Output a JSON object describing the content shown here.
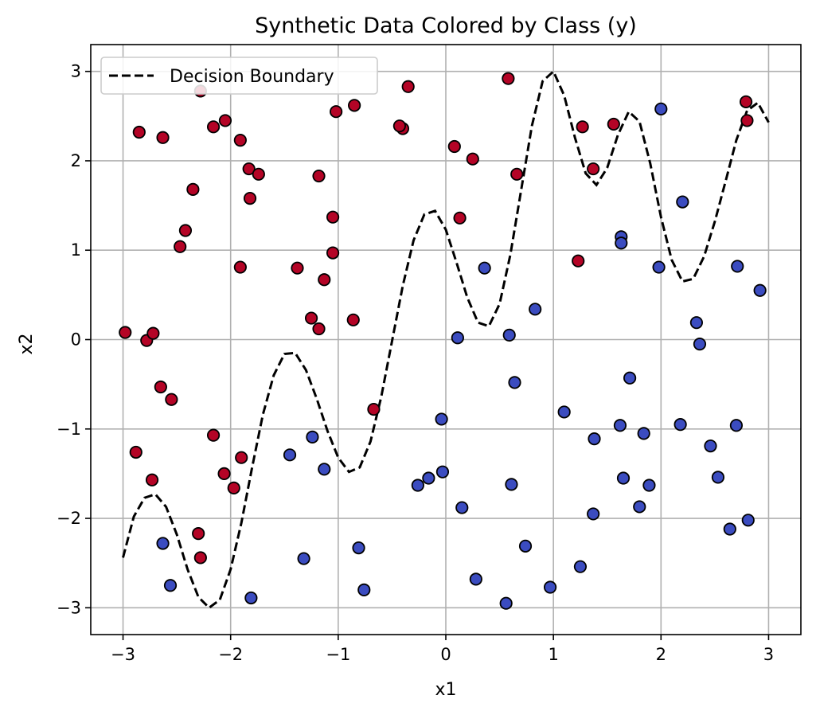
{
  "chart_data": {
    "type": "scatter",
    "title": "Synthetic Data Colored by Class (y)",
    "xlabel": "x1",
    "ylabel": "x2",
    "xlim": [
      -3.3,
      3.3
    ],
    "ylim": [
      -3.3,
      3.3
    ],
    "xticks": [
      -3,
      -2,
      -1,
      0,
      1,
      2,
      3
    ],
    "yticks": [
      -3,
      -2,
      -1,
      0,
      1,
      2,
      3
    ],
    "xtick_labels": [
      "−3",
      "−2",
      "−1",
      "0",
      "1",
      "2",
      "3"
    ],
    "ytick_labels": [
      "−3",
      "−2",
      "−1",
      "0",
      "1",
      "2",
      "3"
    ],
    "grid": true,
    "legend": {
      "placement": "top-left",
      "entries": [
        "Decision Boundary"
      ]
    },
    "colors": {
      "class_1": "#b40426",
      "class_0": "#3b4cc0",
      "boundary": "#000000",
      "edge": "#000000",
      "grid": "#b0b0b0"
    },
    "boundary_line": {
      "name": "Decision Boundary",
      "style": "dashed",
      "x": [
        -3.0,
        -2.9,
        -2.8,
        -2.7,
        -2.6,
        -2.5,
        -2.4,
        -2.3,
        -2.2,
        -2.1,
        -2.0,
        -1.9,
        -1.8,
        -1.7,
        -1.6,
        -1.5,
        -1.4,
        -1.3,
        -1.2,
        -1.1,
        -1.0,
        -0.9,
        -0.8,
        -0.7,
        -0.6,
        -0.5,
        -0.4,
        -0.3,
        -0.2,
        -0.1,
        0.0,
        0.1,
        0.2,
        0.3,
        0.4,
        0.5,
        0.6,
        0.7,
        0.8,
        0.9,
        1.0,
        1.1,
        1.2,
        1.3,
        1.4,
        1.5,
        1.6,
        1.7,
        1.8,
        1.9,
        2.0,
        2.1,
        2.2,
        2.3,
        2.4,
        2.5,
        2.6,
        2.7,
        2.8,
        2.9,
        3.0
      ],
      "y": [
        -2.44,
        -1.98,
        -1.77,
        -1.73,
        -1.87,
        -2.18,
        -2.57,
        -2.88,
        -3.0,
        -2.91,
        -2.57,
        -2.05,
        -1.43,
        -0.84,
        -0.4,
        -0.16,
        -0.15,
        -0.34,
        -0.66,
        -1.02,
        -1.32,
        -1.48,
        -1.43,
        -1.14,
        -0.64,
        -0.02,
        0.6,
        1.11,
        1.4,
        1.44,
        1.23,
        0.86,
        0.47,
        0.19,
        0.15,
        0.4,
        0.95,
        1.67,
        2.39,
        2.89,
        3.0,
        2.73,
        2.26,
        1.86,
        1.73,
        1.92,
        2.29,
        2.55,
        2.44,
        1.97,
        1.37,
        0.89,
        0.65,
        0.68,
        0.93,
        1.32,
        1.77,
        2.23,
        2.56,
        2.65,
        2.43
      ]
    },
    "series": [
      {
        "class": 1,
        "color": "#b40426",
        "points": [
          [
            -2.98,
            0.08
          ],
          [
            -2.85,
            2.32
          ],
          [
            -2.78,
            -0.01
          ],
          [
            -2.72,
            0.07
          ],
          [
            -2.88,
            -1.26
          ],
          [
            -2.73,
            -1.57
          ],
          [
            -2.65,
            -0.53
          ],
          [
            -2.63,
            2.26
          ],
          [
            -2.55,
            -0.67
          ],
          [
            -2.47,
            1.04
          ],
          [
            -2.42,
            1.22
          ],
          [
            -2.35,
            1.68
          ],
          [
            -2.28,
            2.78
          ],
          [
            -2.16,
            2.38
          ],
          [
            -2.05,
            2.45
          ],
          [
            -2.16,
            -1.07
          ],
          [
            -2.06,
            -1.5
          ],
          [
            -1.97,
            -1.66
          ],
          [
            -1.9,
            -1.32
          ],
          [
            -2.3,
            -2.17
          ],
          [
            -2.28,
            -2.44
          ],
          [
            -1.91,
            0.81
          ],
          [
            -1.91,
            2.23
          ],
          [
            -1.83,
            1.91
          ],
          [
            -1.82,
            1.58
          ],
          [
            -1.74,
            1.85
          ],
          [
            -1.38,
            0.8
          ],
          [
            -1.25,
            0.24
          ],
          [
            -1.18,
            0.12
          ],
          [
            -1.18,
            1.83
          ],
          [
            -1.13,
            0.67
          ],
          [
            -1.05,
            0.97
          ],
          [
            -1.05,
            1.37
          ],
          [
            -1.02,
            2.55
          ],
          [
            -0.85,
            2.62
          ],
          [
            -0.86,
            0.22
          ],
          [
            -0.67,
            -0.78
          ],
          [
            -0.4,
            2.36
          ],
          [
            -0.43,
            2.39
          ],
          [
            -0.35,
            2.83
          ],
          [
            0.08,
            2.16
          ],
          [
            0.13,
            1.36
          ],
          [
            0.25,
            2.02
          ],
          [
            0.58,
            2.92
          ],
          [
            0.66,
            1.85
          ],
          [
            1.23,
            0.88
          ],
          [
            1.27,
            2.38
          ],
          [
            1.37,
            1.91
          ],
          [
            1.56,
            2.41
          ],
          [
            2.79,
            2.66
          ],
          [
            2.8,
            2.45
          ]
        ]
      },
      {
        "class": 0,
        "color": "#3b4cc0",
        "points": [
          [
            -2.63,
            -2.28
          ],
          [
            -2.56,
            -2.75
          ],
          [
            -1.81,
            -2.89
          ],
          [
            -1.45,
            -1.29
          ],
          [
            -1.24,
            -1.09
          ],
          [
            -1.13,
            -1.45
          ],
          [
            -1.32,
            -2.45
          ],
          [
            -0.81,
            -2.33
          ],
          [
            -0.76,
            -2.8
          ],
          [
            -0.26,
            -1.63
          ],
          [
            -0.16,
            -1.55
          ],
          [
            -0.04,
            -0.89
          ],
          [
            -0.03,
            -1.48
          ],
          [
            0.11,
            0.02
          ],
          [
            0.15,
            -1.88
          ],
          [
            0.28,
            -2.68
          ],
          [
            0.36,
            0.8
          ],
          [
            0.56,
            -2.95
          ],
          [
            0.59,
            0.05
          ],
          [
            0.61,
            -1.62
          ],
          [
            0.64,
            -0.48
          ],
          [
            0.74,
            -2.31
          ],
          [
            0.83,
            0.34
          ],
          [
            0.97,
            -2.77
          ],
          [
            1.1,
            -0.81
          ],
          [
            1.25,
            -2.54
          ],
          [
            1.37,
            -1.95
          ],
          [
            1.38,
            -1.11
          ],
          [
            1.63,
            1.15
          ],
          [
            1.63,
            1.08
          ],
          [
            1.62,
            -0.96
          ],
          [
            1.65,
            -1.55
          ],
          [
            1.71,
            -0.43
          ],
          [
            1.8,
            -1.87
          ],
          [
            1.84,
            -1.05
          ],
          [
            1.89,
            -1.63
          ],
          [
            1.98,
            0.81
          ],
          [
            2.0,
            2.58
          ],
          [
            2.18,
            -0.95
          ],
          [
            2.2,
            1.54
          ],
          [
            2.33,
            0.19
          ],
          [
            2.36,
            -0.05
          ],
          [
            2.46,
            -1.19
          ],
          [
            2.53,
            -1.54
          ],
          [
            2.64,
            -2.12
          ],
          [
            2.7,
            -0.96
          ],
          [
            2.71,
            0.82
          ],
          [
            2.81,
            -2.02
          ],
          [
            2.92,
            0.55
          ]
        ]
      }
    ]
  }
}
